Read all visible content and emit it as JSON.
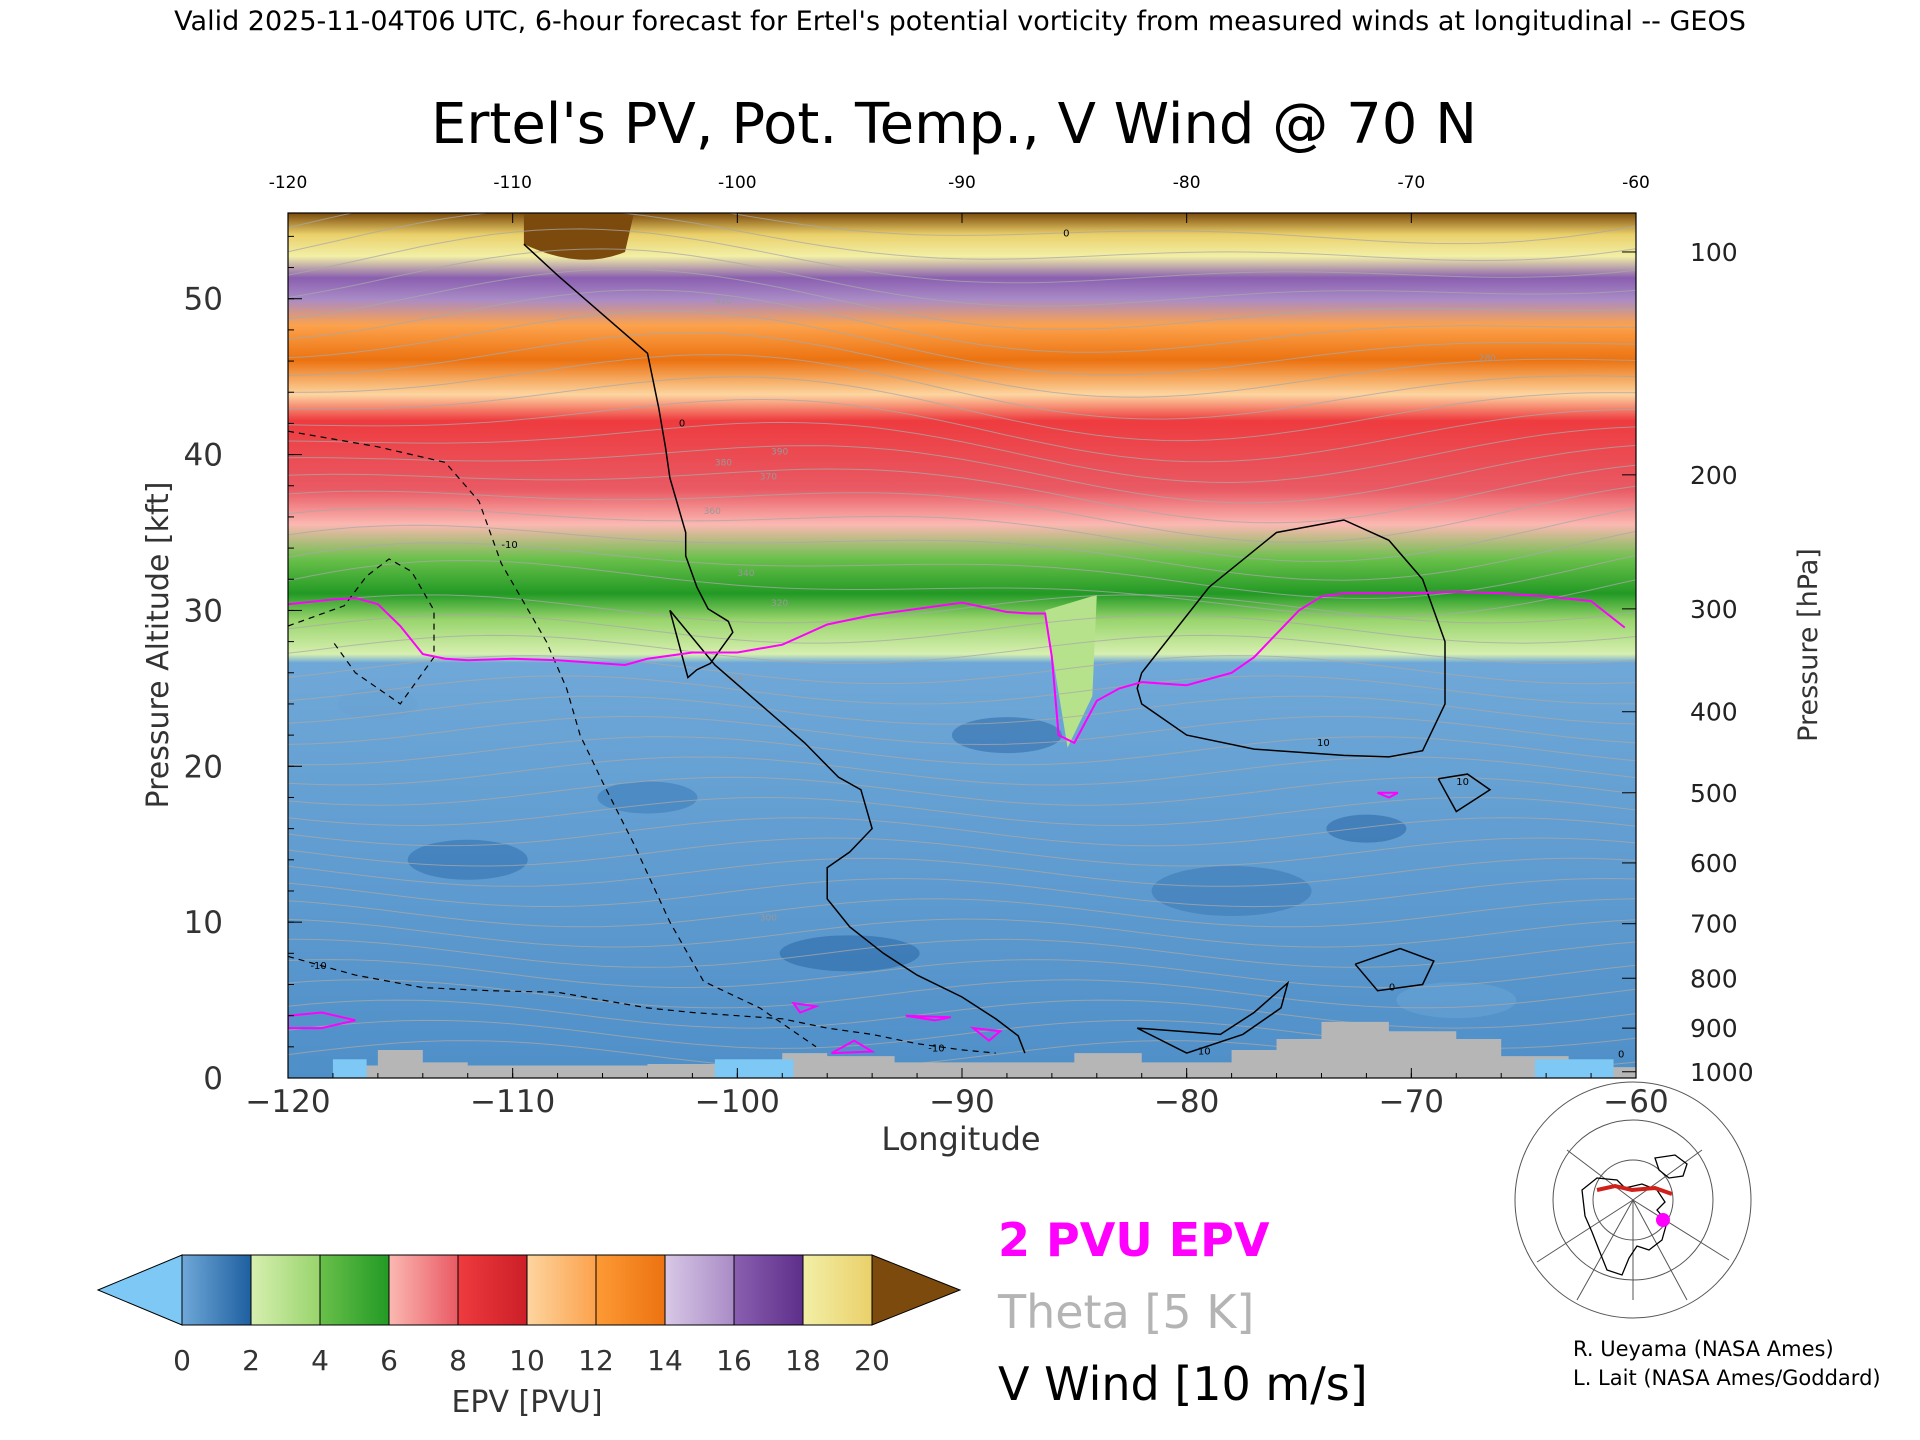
{
  "header_line": "Valid 2025-11-04T06 UTC, 6-hour forecast for Ertel's potential vorticity from measured winds at longitudinal -- GEOS",
  "chart_data": {
    "type": "heatmap",
    "title": "Ertel's PV, Pot. Temp., V Wind @ 70 N",
    "xlabel": "Longitude",
    "ylabel": "Pressure Altitude [kft]",
    "y2label": "Pressure [hPa]",
    "xlim": [
      -120,
      -60
    ],
    "ylim": [
      0,
      55.5
    ],
    "x_ticks": [
      "-120",
      "-110",
      "-100",
      "-90",
      "-80",
      "-70",
      "-60"
    ],
    "x_ticks_top": [
      "-120",
      "-110",
      "-100",
      "-90",
      "-80",
      "-70",
      "-60"
    ],
    "y_ticks": [
      "0",
      "10",
      "20",
      "30",
      "40",
      "50"
    ],
    "pressure_ticks": [
      {
        "label": "100",
        "kft": 53.0
      },
      {
        "label": "200",
        "kft": 38.7
      },
      {
        "label": "300",
        "kft": 30.1
      },
      {
        "label": "400",
        "kft": 23.5
      },
      {
        "label": "500",
        "kft": 18.3
      },
      {
        "label": "600",
        "kft": 13.8
      },
      {
        "label": "700",
        "kft": 9.9
      },
      {
        "label": "800",
        "kft": 6.4
      },
      {
        "label": "900",
        "kft": 3.2
      },
      {
        "label": "1000",
        "kft": 0.4
      }
    ],
    "colorbar": {
      "label": "EPV [PVU]",
      "ticks": [
        "0",
        "2",
        "4",
        "6",
        "8",
        "10",
        "12",
        "14",
        "16",
        "18",
        "20"
      ],
      "under_color": "#7dc8f4",
      "over_color": "#7b4a0c",
      "segments": [
        [
          "#6fa8d8",
          "#1e5fa0"
        ],
        [
          "#d7efb0",
          "#98d46c"
        ],
        [
          "#69c04a",
          "#229a25"
        ],
        [
          "#fbb8b2",
          "#e95a64"
        ],
        [
          "#ee3b3f",
          "#cc1f27"
        ],
        [
          "#fdd5a0",
          "#fca24c"
        ],
        [
          "#fd9a35",
          "#ec7210"
        ],
        [
          "#d8c8e6",
          "#a98bc6"
        ],
        [
          "#8a5fb0",
          "#5e2f8a"
        ],
        [
          "#f2efa6",
          "#ead06a"
        ]
      ]
    },
    "series": [
      {
        "name": "2 PVU EPV",
        "color": "#ff00ff",
        "x": [
          -120,
          -118,
          -117,
          -116,
          -115,
          -114,
          -113,
          -112,
          -110,
          -108,
          -106,
          -105,
          -104,
          -102,
          -100,
          -98,
          -96,
          -94,
          -92,
          -90,
          -89,
          -88,
          -87,
          -86.3,
          -86,
          -85.7,
          -85,
          -84,
          -83,
          -82,
          -80,
          -79,
          -78,
          -77,
          -76,
          -75,
          -74,
          -73,
          -72,
          -70,
          -68,
          -66,
          -64,
          -62,
          -60.5
        ],
        "y": [
          30.4,
          30.7,
          30.8,
          30.4,
          29,
          27.2,
          26.9,
          26.8,
          26.9,
          26.8,
          26.6,
          26.5,
          26.9,
          27.3,
          27.3,
          27.8,
          29.1,
          29.7,
          30.1,
          30.5,
          30.2,
          29.9,
          29.8,
          29.8,
          27,
          22,
          21.5,
          24.2,
          25,
          25.4,
          25.2,
          25.6,
          26,
          27,
          28.5,
          30,
          30.9,
          31.1,
          31.1,
          31.1,
          31.2,
          31.1,
          30.9,
          30.6,
          28.9
        ]
      },
      {
        "name": "Theta [5 K]",
        "color": "#b4b4b4",
        "theta_labels": [
          "410",
          "390",
          "380",
          "370",
          "360",
          "340",
          "320",
          "310",
          "300",
          "280"
        ]
      },
      {
        "name": "V Wind [10 m/s]",
        "color": "#000000",
        "zero_line": {
          "x": [
            -109.5,
            -108,
            -106,
            -104,
            -103.5,
            -103.2,
            -103,
            -102.5,
            -102.3,
            -102.3,
            -101.8,
            -101.3,
            -100.4,
            -100.2,
            -100.7,
            -101.2,
            -101.8,
            -102.2,
            -103,
            -101,
            -99,
            -97,
            -95.5,
            -94.5,
            -94,
            -95,
            -96,
            -96,
            -95,
            -93.5,
            -92,
            -90,
            -88.5,
            -87.5,
            -87.2
          ],
          "y": [
            53.5,
            51.5,
            49,
            46.5,
            43,
            40.5,
            38.5,
            36,
            35,
            33.5,
            31.5,
            30.1,
            29.3,
            28.6,
            27.6,
            26.6,
            26.2,
            25.7,
            30,
            26.5,
            24,
            21.5,
            19.3,
            18.5,
            16,
            14.5,
            13.5,
            11.5,
            9.7,
            8,
            6.6,
            5.2,
            3.8,
            2.7,
            1.6
          ]
        },
        "contour_labels": [
          "0",
          "10",
          "-10"
        ]
      }
    ],
    "terrain_color": "#b6b6b6",
    "grid": false
  },
  "legend": {
    "pvu_label": "2 PVU EPV",
    "theta_label": "Theta [5 K]",
    "wind_label": "V Wind [10 m/s]"
  },
  "credits": {
    "line1": "R. Ueyama (NASA Ames)",
    "line2": "L. Lait (NASA Ames/Goddard)"
  },
  "colors": {
    "pvu": "#ff00ff",
    "theta": "#b4b4b4",
    "terrain": "#b6b6b6",
    "ocean": "#7dc8f4"
  }
}
